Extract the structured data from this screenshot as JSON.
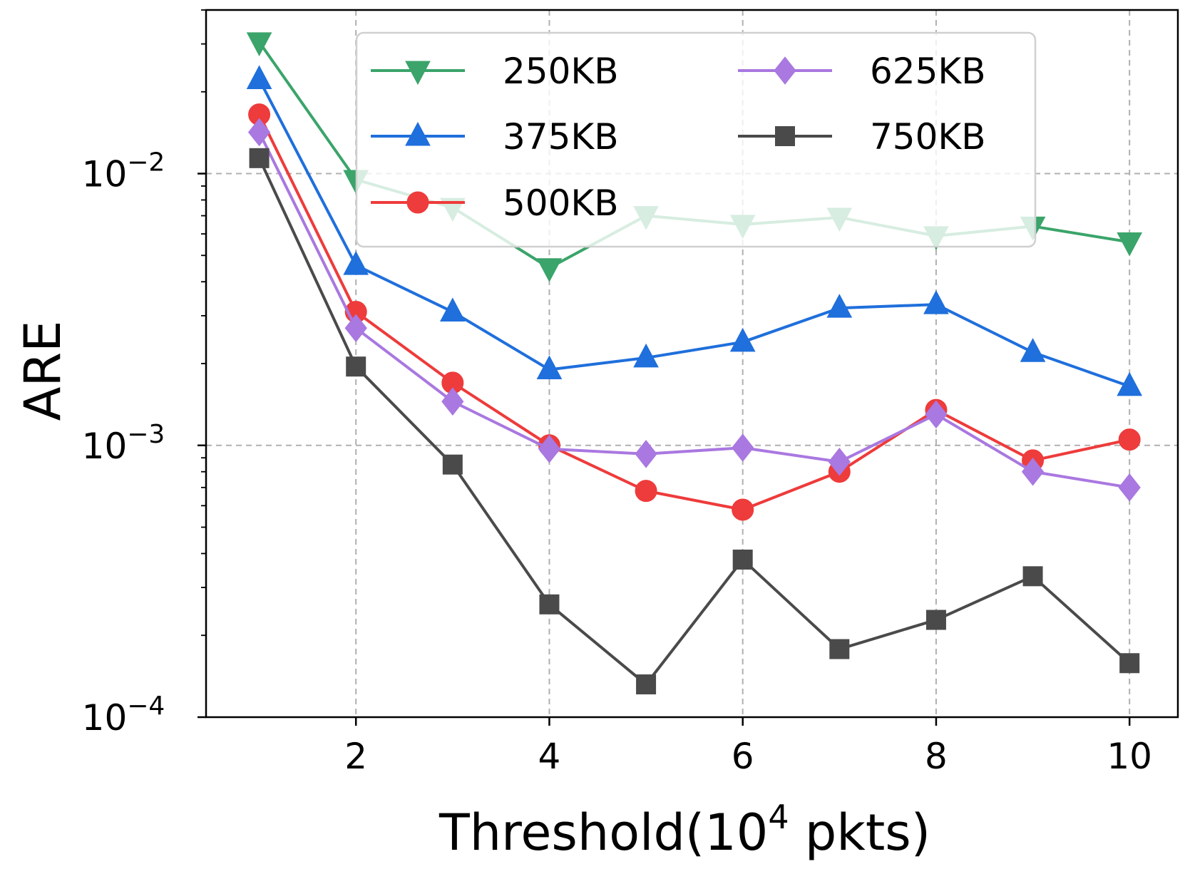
{
  "chart_data": {
    "type": "line",
    "title": "",
    "xlabel": "Threshold(10",
    "xlabel_superscript": "4",
    "xlabel_suffix": " pkts)",
    "ylabel": "ARE",
    "x": [
      1,
      2,
      3,
      4,
      5,
      6,
      7,
      8,
      9,
      10
    ],
    "xlim": [
      0.45,
      10.5
    ],
    "xticks": [
      2,
      4,
      6,
      8,
      10
    ],
    "xtick_labels": [
      "2",
      "4",
      "6",
      "8",
      "10"
    ],
    "yscale": "log",
    "ylim": [
      0.0001,
      0.04
    ],
    "yticks": [
      0.0001,
      0.001,
      0.01
    ],
    "ytick_labels": [
      {
        "base": "10",
        "exp": "−4"
      },
      {
        "base": "10",
        "exp": "−3"
      },
      {
        "base": "10",
        "exp": "−2"
      }
    ],
    "grid": true,
    "legend_position": "top-right",
    "legend_columns": 2,
    "series": [
      {
        "name": "250KB",
        "color": "#3aa46a",
        "marker": "triangle-down",
        "values": [
          0.0305,
          0.0095,
          0.0075,
          0.0045,
          0.007,
          0.0065,
          0.0069,
          0.0059,
          0.0064,
          0.0056
        ]
      },
      {
        "name": "375KB",
        "color": "#1f6fdc",
        "marker": "triangle-up",
        "values": [
          0.0222,
          0.0046,
          0.0031,
          0.0019,
          0.0021,
          0.0024,
          0.0032,
          0.0033,
          0.0022,
          0.00165
        ]
      },
      {
        "name": "500KB",
        "color": "#ee3b3b",
        "marker": "circle",
        "values": [
          0.0165,
          0.0031,
          0.0017,
          0.001,
          0.00068,
          0.00058,
          0.0008,
          0.00135,
          0.00088,
          0.00105
        ]
      },
      {
        "name": "625KB",
        "color": "#a978e0",
        "marker": "diamond",
        "values": [
          0.0142,
          0.0027,
          0.00145,
          0.00097,
          0.00093,
          0.00098,
          0.00087,
          0.0013,
          0.0008,
          0.0007
        ]
      },
      {
        "name": "750KB",
        "color": "#4a4a4a",
        "marker": "square",
        "values": [
          0.0114,
          0.00195,
          0.00085,
          0.00026,
          0.000132,
          0.00038,
          0.000178,
          0.000228,
          0.00033,
          0.000158
        ]
      }
    ]
  }
}
